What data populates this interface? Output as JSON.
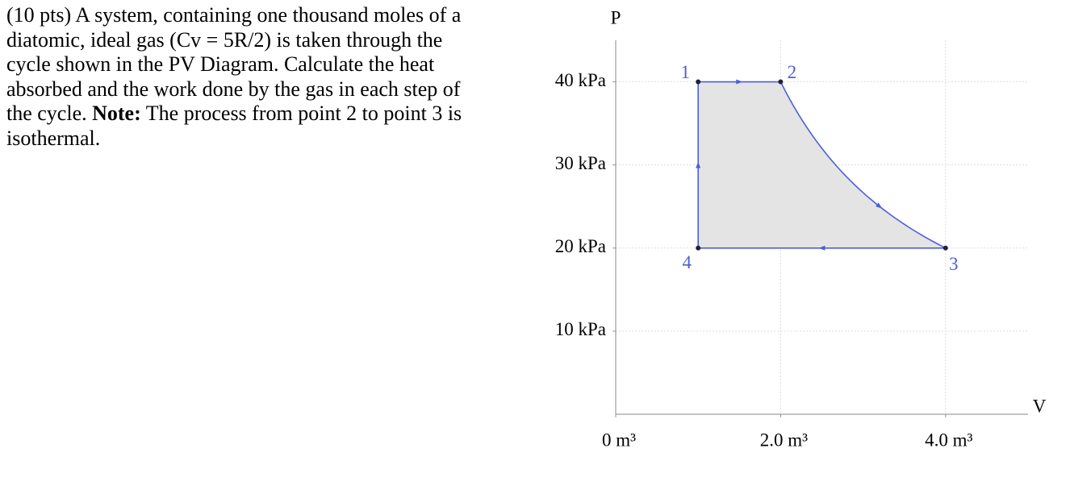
{
  "problem": {
    "text_before": "(10 pts) A system, containing one thousand moles of a diatomic, ideal gas (Cv = 5R/2) is taken through the cycle shown in the PV Diagram. Calculate the heat absorbed and the work done by the gas in each step of the cycle. ",
    "note_label": "Note:",
    "text_after": " The process from point 2 to point 3 is isothermal."
  },
  "chart_data": {
    "type": "cycle",
    "x_label": "V",
    "y_label": "P",
    "xlim": [
      0,
      5
    ],
    "ylim": [
      0,
      45
    ],
    "xticks": [
      {
        "value": 0,
        "label": "0 m³"
      },
      {
        "value": 2,
        "label": "2.0 m³"
      },
      {
        "value": 4,
        "label": "4.0 m³"
      }
    ],
    "yticks": [
      {
        "value": 10,
        "label": "10 kPa"
      },
      {
        "value": 20,
        "label": "20 kPa"
      },
      {
        "value": 30,
        "label": "30 kPa"
      },
      {
        "value": 40,
        "label": "40 kPa"
      }
    ],
    "grid": true,
    "color": "#4d5fd8",
    "fill": "#e4e4e4",
    "points": [
      {
        "label": "1",
        "x": 1,
        "y": 40
      },
      {
        "label": "2",
        "x": 2,
        "y": 40
      },
      {
        "label": "3",
        "x": 4,
        "y": 20
      },
      {
        "label": "4",
        "x": 1,
        "y": 20
      }
    ],
    "edges": [
      [
        0,
        1,
        "straight"
      ],
      [
        1,
        2,
        "isothermal"
      ],
      [
        2,
        3,
        "straight"
      ],
      [
        3,
        0,
        "straight"
      ]
    ]
  }
}
